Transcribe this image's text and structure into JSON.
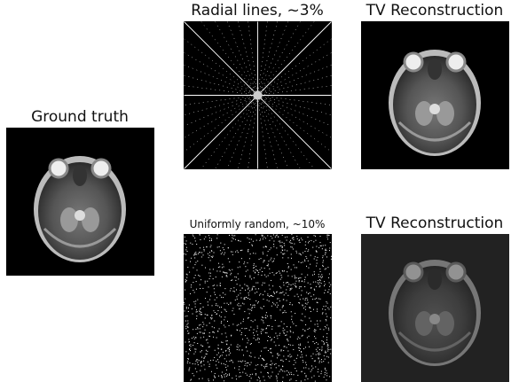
{
  "panels": [
    {
      "title": "Ground truth"
    },
    {
      "title": "Radial lines, ~3%"
    },
    {
      "title": "TV Reconstruction"
    },
    {
      "title": "Uniformly random, ~10%"
    },
    {
      "title": "TV Reconstruction"
    }
  ]
}
